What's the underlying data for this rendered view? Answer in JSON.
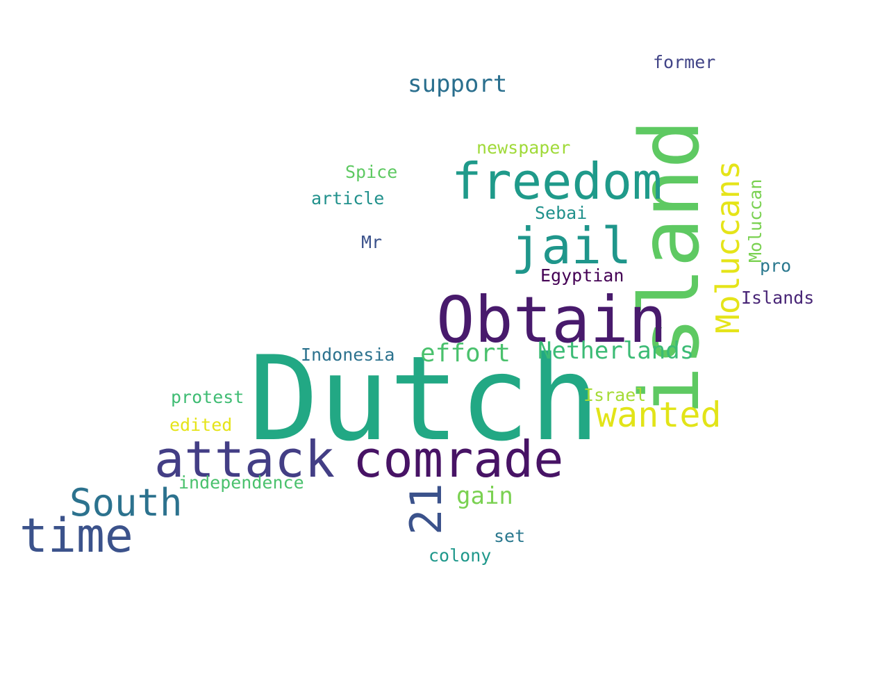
{
  "words": {
    "dutch": {
      "text": "Dutch",
      "color": "#22a884"
    },
    "island": {
      "text": "island",
      "color": "#5ec962"
    },
    "obtain": {
      "text": "Obtain",
      "color": "#481a6c"
    },
    "freedom": {
      "text": "freedom",
      "color": "#1f9a8a"
    },
    "comrade": {
      "text": "comrade",
      "color": "#471365"
    },
    "attack": {
      "text": "attack",
      "color": "#433e85"
    },
    "jail": {
      "text": "jail",
      "color": "#1f968b"
    },
    "time": {
      "text": "time",
      "color": "#3b528b"
    },
    "moluccans": {
      "text": "Moluccans",
      "color": "#e5e419"
    },
    "south": {
      "text": "South",
      "color": "#2c728e"
    },
    "twentyone": {
      "text": "21",
      "color": "#3b528b"
    },
    "wanted": {
      "text": "wanted",
      "color": "#e2e418"
    },
    "netherlands": {
      "text": "Netherlands",
      "color": "#3bbb75"
    },
    "effort": {
      "text": "effort",
      "color": "#4ac16d"
    },
    "support": {
      "text": "support",
      "color": "#2a6f8e"
    },
    "gain": {
      "text": "gain",
      "color": "#7ad151"
    },
    "former": {
      "text": "former",
      "color": "#414487"
    },
    "newspaper": {
      "text": "newspaper",
      "color": "#a0da39"
    },
    "spice": {
      "text": "Spice",
      "color": "#5ec962"
    },
    "article": {
      "text": "article",
      "color": "#21918c"
    },
    "sebai": {
      "text": "Sebai",
      "color": "#21918c"
    },
    "mr": {
      "text": "Mr",
      "color": "#3b528b"
    },
    "egyptian": {
      "text": "Egyptian",
      "color": "#440154"
    },
    "moluccan": {
      "text": "Moluccan",
      "color": "#7ad151"
    },
    "pro": {
      "text": "pro",
      "color": "#2a788e"
    },
    "islands": {
      "text": "Islands",
      "color": "#482576"
    },
    "indonesia": {
      "text": "Indonesia",
      "color": "#2c728e"
    },
    "israel": {
      "text": "Israel",
      "color": "#a5db36"
    },
    "protest": {
      "text": "protest",
      "color": "#3fbc73"
    },
    "edited": {
      "text": "edited",
      "color": "#e5e419"
    },
    "independence": {
      "text": "independence",
      "color": "#4ac16d"
    },
    "set": {
      "text": "set",
      "color": "#2a788e"
    },
    "colony": {
      "text": "colony",
      "color": "#1f988b"
    }
  },
  "order": [
    "dutch",
    "island",
    "obtain",
    "freedom",
    "comrade",
    "attack",
    "jail",
    "time",
    "moluccans",
    "south",
    "twentyone",
    "wanted",
    "netherlands",
    "effort",
    "support",
    "gain",
    "former",
    "newspaper",
    "spice",
    "article",
    "sebai",
    "mr",
    "egyptian",
    "moluccan",
    "pro",
    "islands",
    "indonesia",
    "israel",
    "protest",
    "edited",
    "independence",
    "set",
    "colony"
  ],
  "rotated": [
    "island",
    "moluccans",
    "twentyone",
    "moluccan"
  ]
}
